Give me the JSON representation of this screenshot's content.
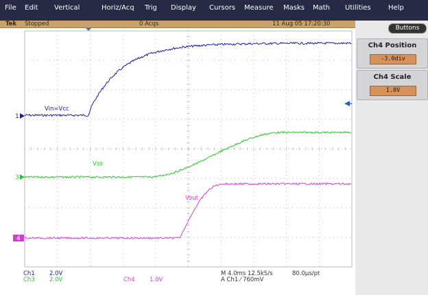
{
  "menu": [
    "File",
    "Edit",
    "Vertical",
    "Horiz/Acq",
    "Trig",
    "Display",
    "Cursors",
    "Measure",
    "Masks",
    "Math",
    "Utilities",
    "Help"
  ],
  "status": {
    "brand": "Tek",
    "state": "Stopped",
    "acqs": "0 Acqs",
    "datetime": "11 Aug 05 17:20:30"
  },
  "panel": {
    "buttons_label": "Buttons",
    "ch4_position_title": "Ch4 Position",
    "ch4_position_value": "-3.0div",
    "ch4_scale_title": "Ch4 Scale",
    "ch4_scale_value": "1.0V"
  },
  "scope": {
    "markers": {
      "ch1": "1",
      "ch3": "3",
      "ch4": "4"
    },
    "labels": {
      "ch1": "Vin=Vcc",
      "ch3": "Vss",
      "ch4": "Vout"
    },
    "colors": {
      "ch1": "#1a1aa8",
      "ch3": "#28c828",
      "ch4": "#d040d0",
      "grid": "#a0a0a0",
      "trigger": "#2060d0"
    }
  },
  "readout": {
    "ch1_name": "Ch1",
    "ch1_scale": "2.0V",
    "ch3_name": "Ch3",
    "ch3_scale": "2.0V",
    "ch4_name": "Ch4",
    "ch4_scale": "1.0V",
    "timebase": "M 4.0ms 12.5kS/s",
    "resolution": "80.0µs/pt",
    "trigger": "A  Ch1  ⁄  760mV"
  }
}
